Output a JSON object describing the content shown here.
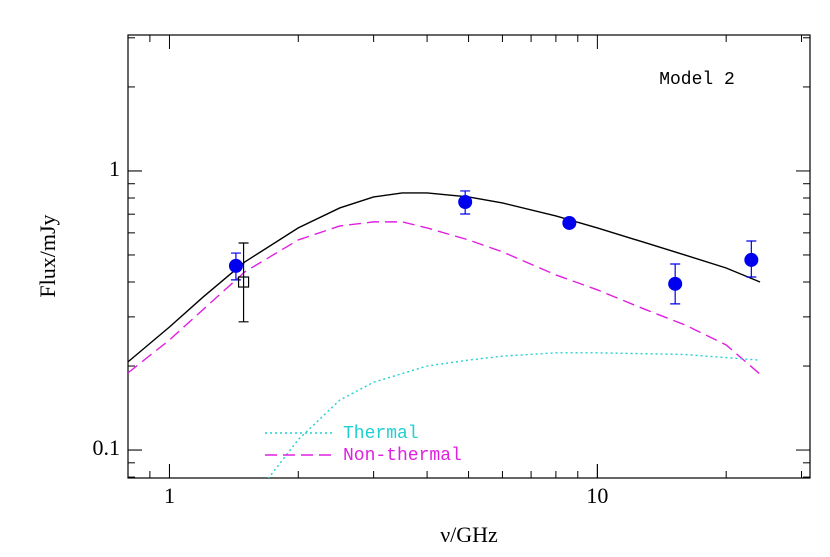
{
  "chart_data": {
    "type": "scatter",
    "annotation": "Model 2",
    "x_label": "ν/GHz",
    "y_label": "Flux/mJy",
    "xscale": "log",
    "yscale": "log",
    "xlim": [
      0.8,
      31.4
    ],
    "ylim": [
      0.0794,
      3.07
    ],
    "xticks": [
      1,
      10
    ],
    "yticks": [
      0.1,
      1
    ],
    "legend": "lower left",
    "series": [
      {
        "color": "#000000",
        "line": "solid",
        "x": [
          0.8,
          1,
          1.2,
          1.5,
          2,
          2.5,
          3,
          3.5,
          4,
          5,
          6,
          8,
          10,
          13,
          16,
          20,
          24
        ],
        "values": [
          0.207,
          0.276,
          0.354,
          0.472,
          0.625,
          0.737,
          0.807,
          0.834,
          0.834,
          0.807,
          0.768,
          0.69,
          0.625,
          0.552,
          0.5,
          0.449,
          0.4
        ]
      },
      {
        "name": "Non-thermal",
        "color": "#e020e0",
        "line": "dashed",
        "x": [
          0.8,
          1,
          1.5,
          2,
          2.5,
          3,
          3.5,
          4,
          5,
          6,
          8,
          10,
          13,
          16,
          20,
          24
        ],
        "values": [
          0.189,
          0.248,
          0.435,
          0.566,
          0.635,
          0.657,
          0.657,
          0.625,
          0.566,
          0.513,
          0.424,
          0.375,
          0.318,
          0.281,
          0.238,
          0.187
        ]
      },
      {
        "name": "Thermal",
        "color": "#20d0d0",
        "line": "dotted",
        "x": [
          1.7,
          2,
          2.5,
          3,
          4,
          5,
          6,
          8,
          10,
          16,
          24
        ],
        "values": [
          0.079,
          0.109,
          0.151,
          0.175,
          0.2,
          0.21,
          0.217,
          0.223,
          0.223,
          0.22,
          0.21
        ]
      },
      {
        "color": "#0000ee",
        "marker": "circle",
        "x": [
          1.43,
          4.91,
          8.6,
          15.2,
          22.9
        ],
        "values": [
          0.457,
          0.774,
          0.651,
          0.394,
          0.48
        ],
        "lower": [
          0.407,
          0.701,
          0.635,
          0.334,
          0.417
        ],
        "upper": [
          0.508,
          0.848,
          0.667,
          0.464,
          0.561
        ]
      },
      {
        "color": "#000000",
        "marker": "square",
        "x": [
          1.49
        ],
        "values": [
          0.4
        ],
        "lower": [
          0.288
        ],
        "upper": [
          0.552
        ]
      }
    ]
  }
}
